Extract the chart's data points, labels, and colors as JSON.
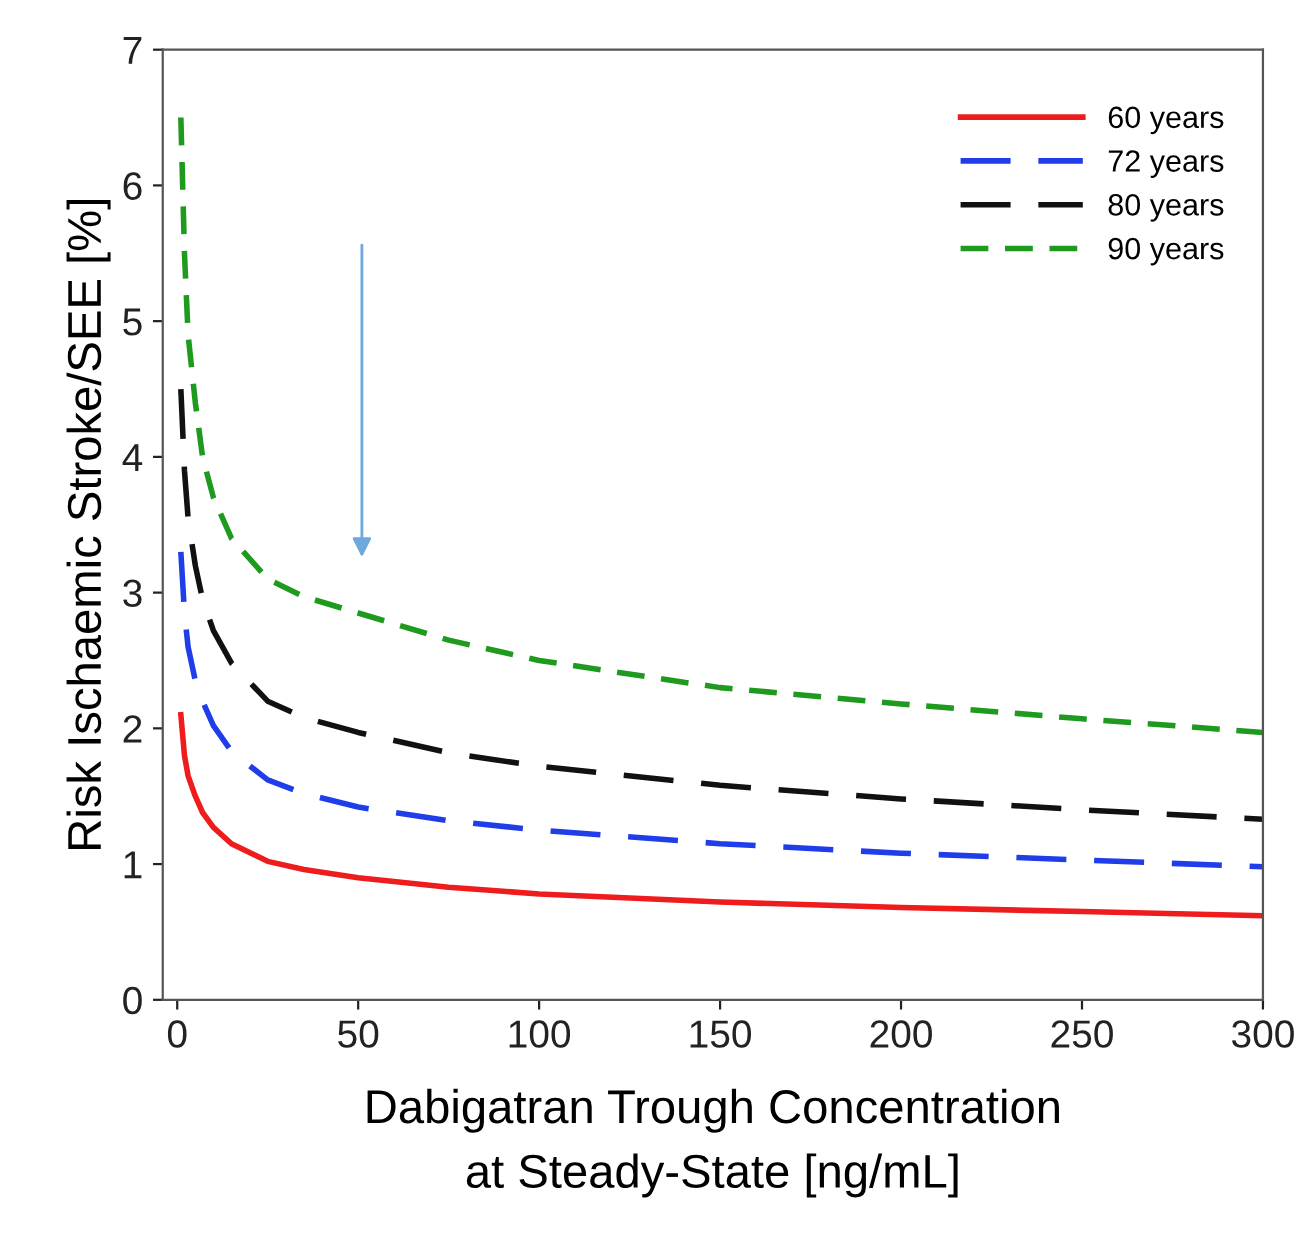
{
  "chart_data": {
    "type": "line",
    "xlabel": "Dabigatran Trough Concentration\nat Steady-State [ng/mL]",
    "ylabel": "Risk Ischaemic Stroke/SEE [%]",
    "x": [
      1,
      2,
      3,
      5,
      7,
      10,
      15,
      25,
      35,
      50,
      75,
      100,
      150,
      200,
      250,
      300
    ],
    "series": [
      {
        "name": "60 years",
        "color": "#ee1c1c",
        "line_style": "solid",
        "values": [
          2.1,
          1.8,
          1.65,
          1.5,
          1.38,
          1.27,
          1.15,
          1.02,
          0.96,
          0.9,
          0.83,
          0.78,
          0.72,
          0.68,
          0.65,
          0.62
        ]
      },
      {
        "name": "72 years",
        "color": "#1f3de8",
        "line_style": "dashed",
        "values": [
          3.3,
          2.85,
          2.6,
          2.35,
          2.2,
          2.02,
          1.83,
          1.62,
          1.52,
          1.42,
          1.32,
          1.25,
          1.15,
          1.08,
          1.03,
          0.98
        ]
      },
      {
        "name": "80 years",
        "color": "#111111",
        "line_style": "dashed",
        "values": [
          4.5,
          3.9,
          3.55,
          3.2,
          2.95,
          2.72,
          2.48,
          2.2,
          2.08,
          1.97,
          1.82,
          1.72,
          1.58,
          1.48,
          1.4,
          1.33
        ]
      },
      {
        "name": "90 years",
        "color": "#1e9a1e",
        "line_style": "dotted",
        "values": [
          6.5,
          5.5,
          4.9,
          4.4,
          4.0,
          3.7,
          3.4,
          3.1,
          2.97,
          2.85,
          2.65,
          2.5,
          2.3,
          2.18,
          2.07,
          1.97
        ]
      }
    ],
    "xlim": [
      -4,
      300
    ],
    "xticks": [
      0,
      50,
      100,
      150,
      200,
      250,
      300
    ],
    "ylim": [
      0,
      7
    ],
    "yticks": [
      0,
      1,
      2,
      3,
      4,
      5,
      6,
      7
    ],
    "grid": false,
    "legend": "top right",
    "marker": "none"
  }
}
